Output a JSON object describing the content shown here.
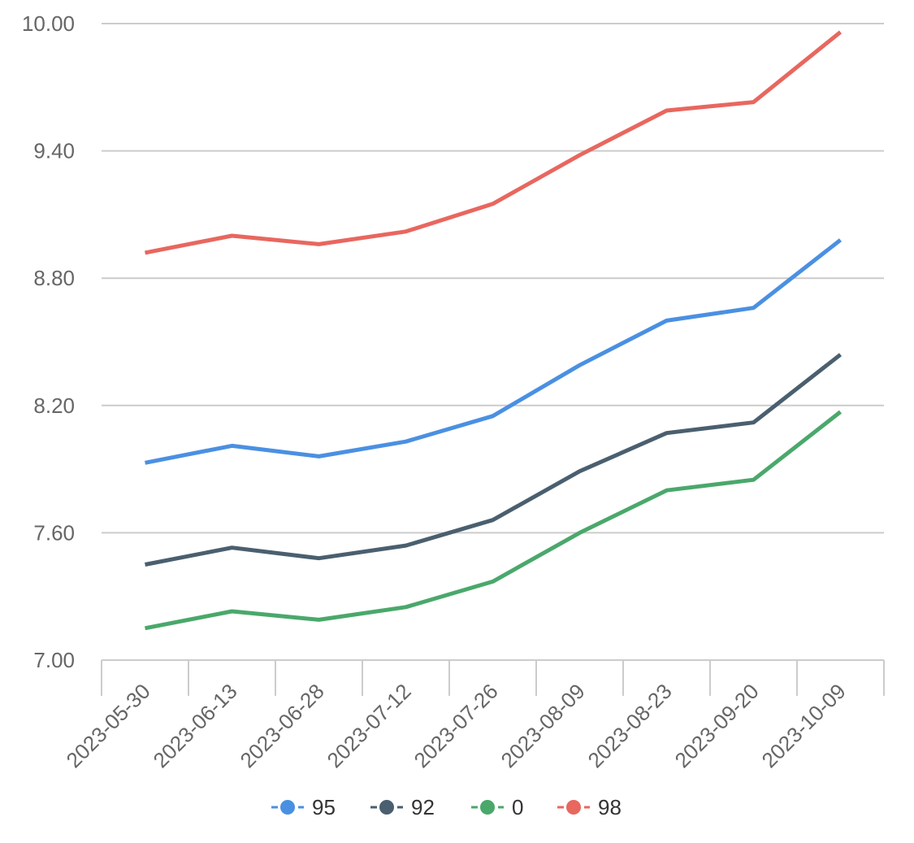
{
  "chart_data": {
    "type": "line",
    "title": "",
    "xlabel": "",
    "ylabel": "",
    "categories": [
      "2023-05-30",
      "2023-06-13",
      "2023-06-28",
      "2023-07-12",
      "2023-07-26",
      "2023-08-09",
      "2023-08-23",
      "2023-09-20",
      "2023-10-09"
    ],
    "y_ticks": [
      "7.00",
      "7.60",
      "8.20",
      "8.80",
      "9.40",
      "10.00"
    ],
    "ylim": [
      7.0,
      10.0
    ],
    "grid": true,
    "legend_position": "bottom",
    "series": [
      {
        "name": "95",
        "color": "#4a90e2",
        "values": [
          7.93,
          8.01,
          7.96,
          8.03,
          8.15,
          8.39,
          8.6,
          8.66,
          8.98
        ]
      },
      {
        "name": "92",
        "color": "#4a5f6f",
        "values": [
          7.45,
          7.53,
          7.48,
          7.54,
          7.66,
          7.89,
          8.07,
          8.12,
          8.44
        ]
      },
      {
        "name": "0",
        "color": "#4aa86b",
        "values": [
          7.15,
          7.23,
          7.19,
          7.25,
          7.37,
          7.6,
          7.8,
          7.85,
          8.17
        ]
      },
      {
        "name": "98",
        "color": "#e8675f",
        "values": [
          8.92,
          9.0,
          8.96,
          9.02,
          9.15,
          9.38,
          9.59,
          9.63,
          9.96
        ]
      }
    ]
  }
}
